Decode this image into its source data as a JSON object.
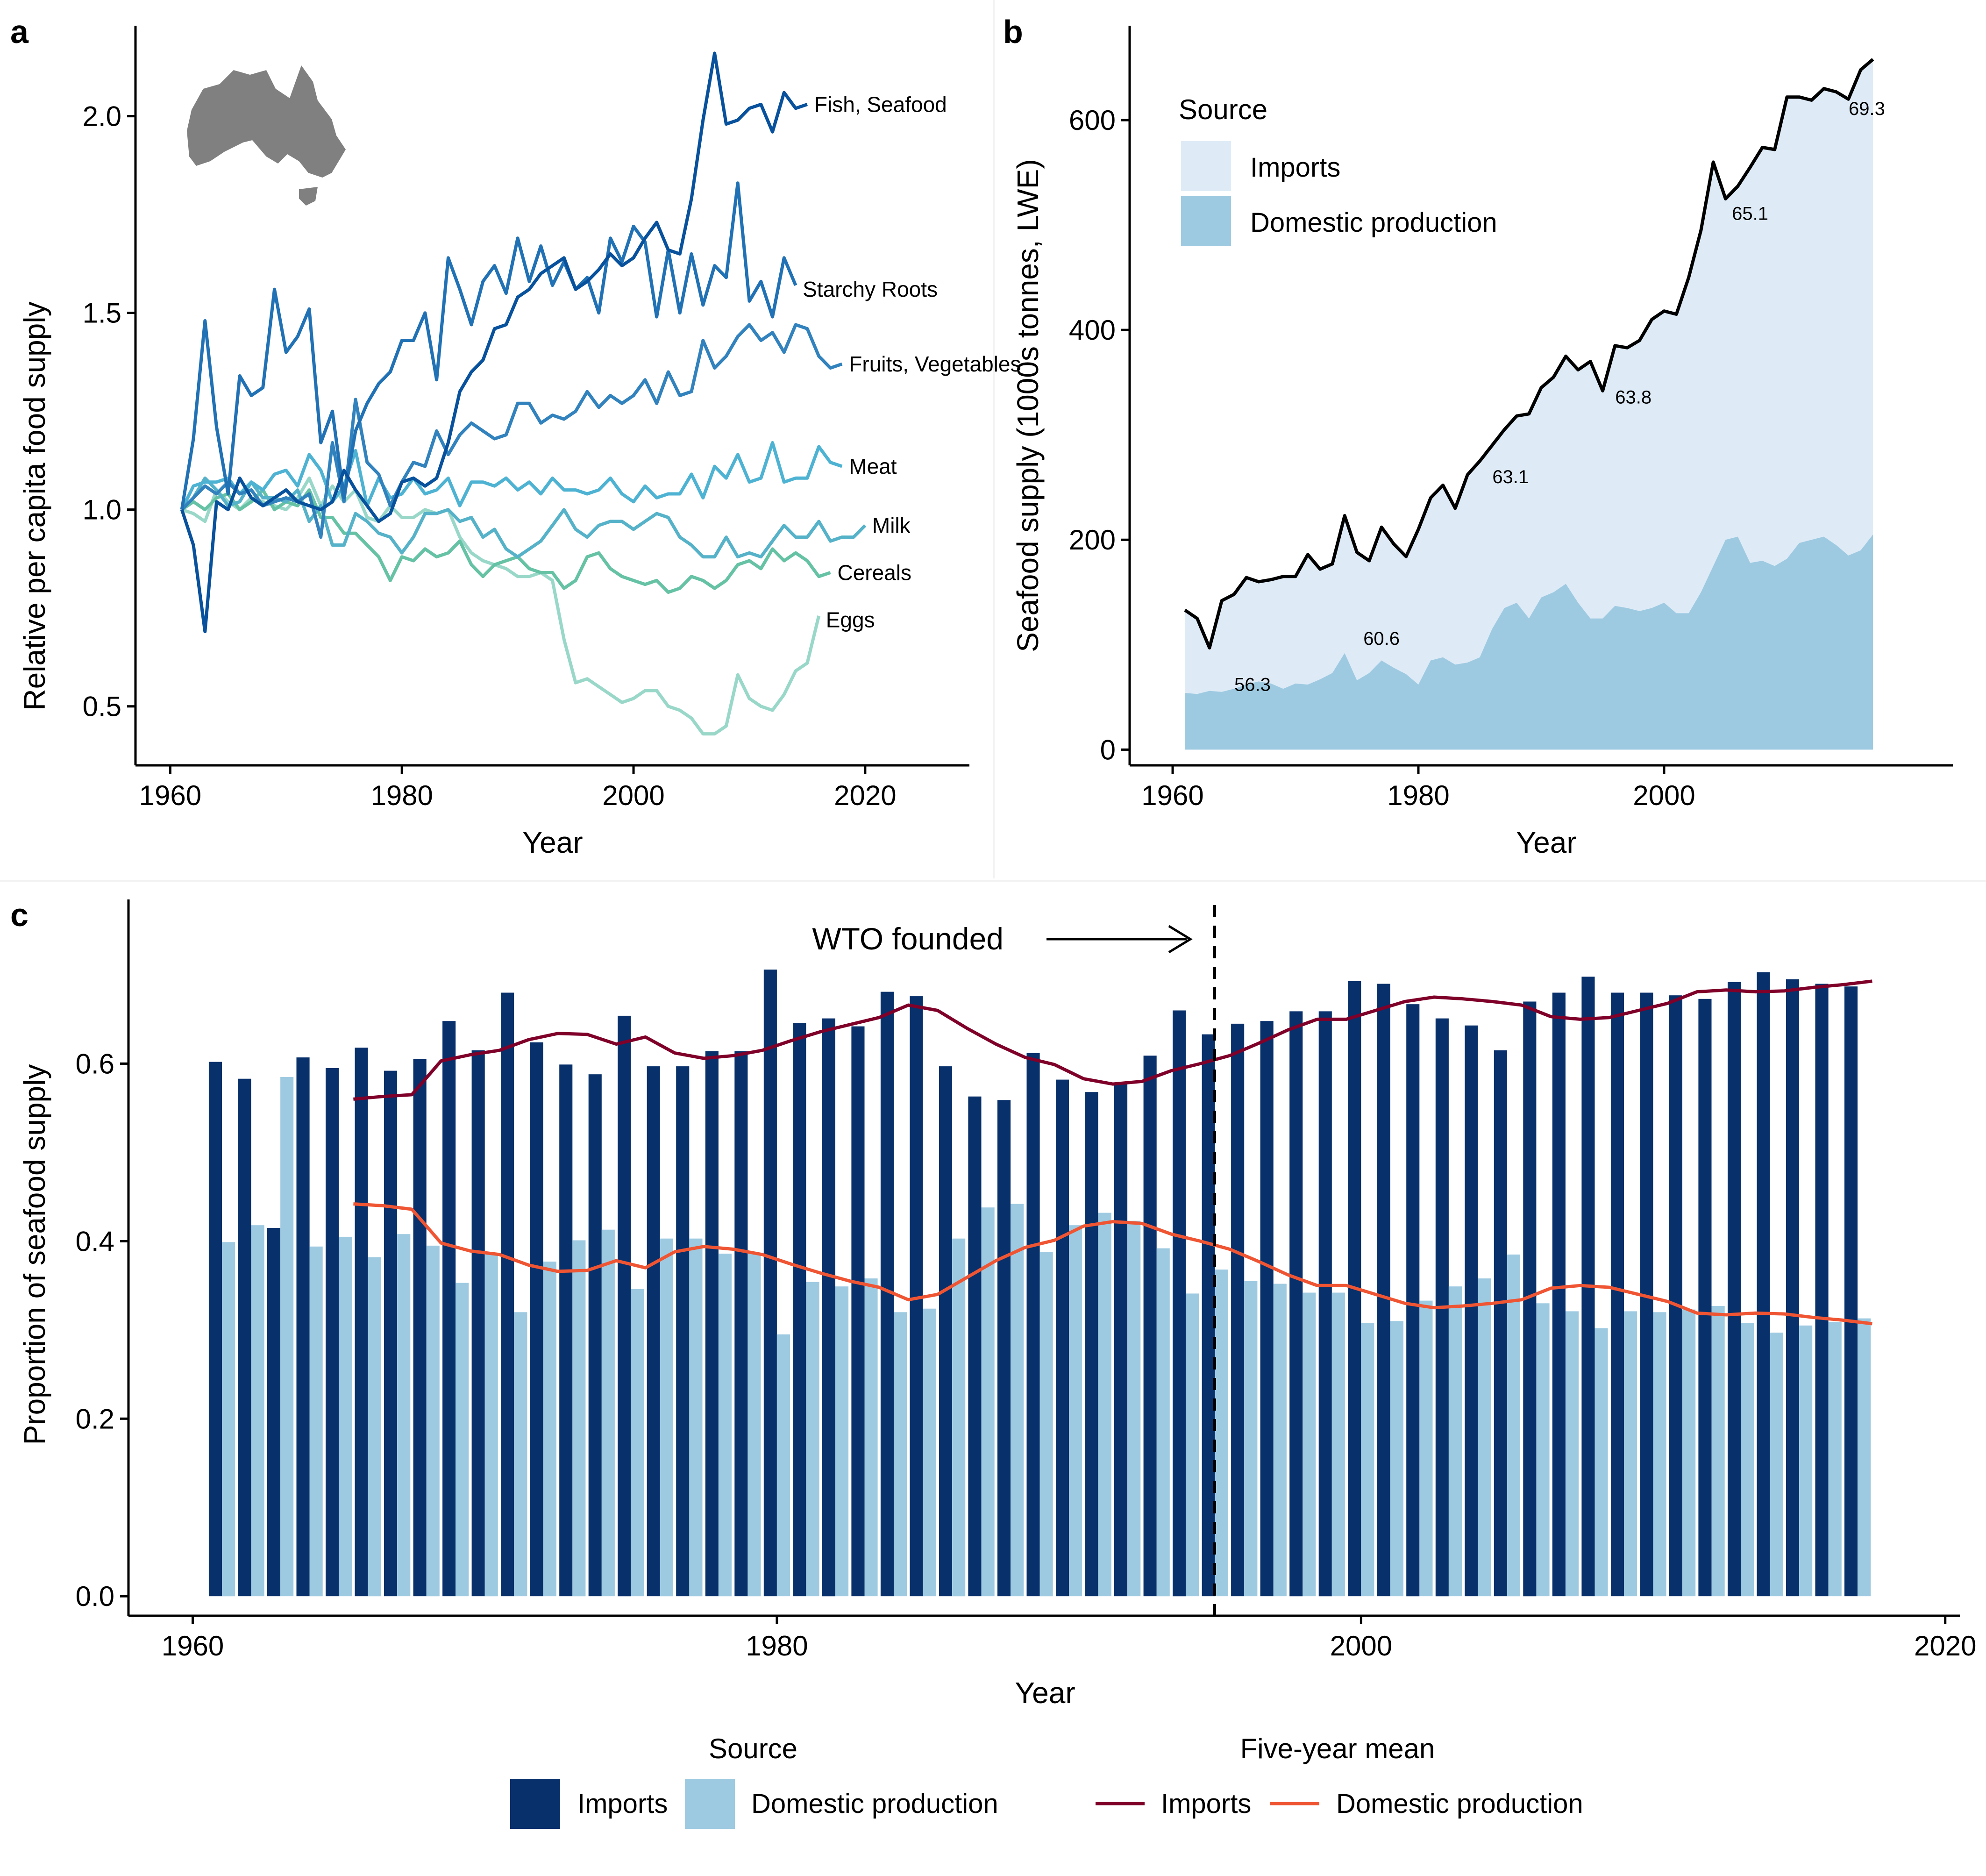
{
  "panels": {
    "a": {
      "letter": "a"
    },
    "b": {
      "letter": "b"
    },
    "c": {
      "letter": "c"
    }
  },
  "colors": {
    "fish_seafood": "#08519c",
    "starchy_roots": "#2171b5",
    "fruits_vegetables": "#3182bd",
    "meat": "#4eb3d3",
    "milk": "#55b2c8",
    "cereals": "#66c2a4",
    "eggs": "#99d8c9",
    "imports_area": "#deebf7",
    "domestic_area": "#9ecae1",
    "total_line": "#000000",
    "imports_bar": "#08306b",
    "domestic_bar": "#9ecae1",
    "imports_mean": "#7f0029",
    "domestic_mean": "#ef5533",
    "map_fill": "#808080"
  },
  "chart_data": [
    {
      "panel": "a",
      "type": "line",
      "title": "",
      "xlabel": "Year",
      "ylabel": "Relative per capita food supply",
      "xlim": [
        1957,
        2029
      ],
      "ylim": [
        0.35,
        2.23
      ],
      "xticks": [
        1960,
        1980,
        2000,
        2020
      ],
      "yticks": [
        0.5,
        1.0,
        1.5,
        2.0
      ],
      "ytick_labels": [
        "0.5",
        "1.0",
        "1.5",
        "2.0"
      ],
      "x_start": 1961,
      "inset_icon": "australia-map-icon",
      "series": [
        {
          "name": "Fish, Seafood",
          "color_key": "fish_seafood",
          "values": [
            1.0,
            0.91,
            0.69,
            1.02,
            1.0,
            1.08,
            1.03,
            1.01,
            1.03,
            1.05,
            1.02,
            1.01,
            1.0,
            1.02,
            1.1,
            1.05,
            1.01,
            0.97,
            0.99,
            1.07,
            1.08,
            1.06,
            1.08,
            1.17,
            1.3,
            1.35,
            1.38,
            1.46,
            1.47,
            1.54,
            1.56,
            1.6,
            1.62,
            1.64,
            1.56,
            1.58,
            1.61,
            1.65,
            1.62,
            1.64,
            1.69,
            1.73,
            1.66,
            1.65,
            1.79,
            1.99,
            2.16,
            1.98,
            1.99,
            2.02,
            2.03,
            1.96,
            2.06,
            2.02,
            2.03
          ]
        },
        {
          "name": "Starchy Roots",
          "color_key": "starchy_roots",
          "values": [
            1.0,
            1.18,
            1.48,
            1.21,
            1.04,
            1.34,
            1.29,
            1.31,
            1.56,
            1.4,
            1.44,
            1.51,
            1.17,
            1.25,
            1.03,
            1.2,
            1.27,
            1.32,
            1.35,
            1.43,
            1.43,
            1.5,
            1.33,
            1.64,
            1.56,
            1.47,
            1.58,
            1.62,
            1.55,
            1.69,
            1.58,
            1.67,
            1.57,
            1.63,
            1.56,
            1.59,
            1.5,
            1.69,
            1.63,
            1.72,
            1.68,
            1.49,
            1.66,
            1.5,
            1.65,
            1.52,
            1.62,
            1.59,
            1.83,
            1.53,
            1.58,
            1.49,
            1.64,
            1.57
          ]
        },
        {
          "name": "Fruits, Vegetables",
          "color_key": "fruits_vegetables",
          "values": [
            1.0,
            1.03,
            1.06,
            1.04,
            1.07,
            1.04,
            1.05,
            1.01,
            1.02,
            1.03,
            1.02,
            1.04,
            0.93,
            1.17,
            1.02,
            1.28,
            1.12,
            1.09,
            1.01,
            1.07,
            1.12,
            1.11,
            1.2,
            1.14,
            1.19,
            1.22,
            1.2,
            1.18,
            1.19,
            1.27,
            1.27,
            1.22,
            1.24,
            1.23,
            1.25,
            1.3,
            1.26,
            1.29,
            1.27,
            1.29,
            1.33,
            1.27,
            1.35,
            1.29,
            1.3,
            1.43,
            1.36,
            1.39,
            1.44,
            1.47,
            1.43,
            1.45,
            1.4,
            1.47,
            1.46,
            1.39,
            1.36,
            1.37
          ]
        },
        {
          "name": "Meat",
          "color_key": "meat",
          "values": [
            1.0,
            1.06,
            1.07,
            1.07,
            1.08,
            1.04,
            1.07,
            1.05,
            1.09,
            1.1,
            1.06,
            1.14,
            1.1,
            1.02,
            1.06,
            1.15,
            1.01,
            1.08,
            1.03,
            1.04,
            1.08,
            1.04,
            1.05,
            1.08,
            1.01,
            1.07,
            1.07,
            1.06,
            1.08,
            1.05,
            1.07,
            1.04,
            1.08,
            1.05,
            1.05,
            1.04,
            1.05,
            1.08,
            1.04,
            1.02,
            1.06,
            1.03,
            1.04,
            1.04,
            1.09,
            1.03,
            1.11,
            1.08,
            1.14,
            1.07,
            1.08,
            1.17,
            1.07,
            1.08,
            1.08,
            1.16,
            1.12,
            1.11
          ]
        },
        {
          "name": "Milk",
          "color_key": "milk",
          "values": [
            1.0,
            1.03,
            1.08,
            1.05,
            1.01,
            1.02,
            1.07,
            1.03,
            1.03,
            1.02,
            1.05,
            0.97,
            1.01,
            0.91,
            0.91,
            0.99,
            0.97,
            0.94,
            0.93,
            0.89,
            0.93,
            0.99,
            0.99,
            1.0,
            0.97,
            0.98,
            0.93,
            0.95,
            0.9,
            0.88,
            0.9,
            0.92,
            0.96,
            1.0,
            0.95,
            0.93,
            0.96,
            0.97,
            0.97,
            0.95,
            0.97,
            0.99,
            0.98,
            0.93,
            0.91,
            0.88,
            0.88,
            0.93,
            0.88,
            0.89,
            0.88,
            0.92,
            0.96,
            0.93,
            0.93,
            0.97,
            0.92,
            0.93,
            0.93,
            0.96
          ]
        },
        {
          "name": "Cereals",
          "color_key": "cereals",
          "values": [
            1.0,
            1.02,
            1.0,
            1.03,
            1.04,
            1.0,
            1.02,
            1.05,
            1.0,
            1.02,
            1.01,
            1.05,
            0.98,
            0.98,
            0.94,
            0.94,
            0.91,
            0.88,
            0.82,
            0.88,
            0.87,
            0.9,
            0.88,
            0.89,
            0.92,
            0.86,
            0.83,
            0.86,
            0.87,
            0.88,
            0.85,
            0.84,
            0.84,
            0.8,
            0.82,
            0.88,
            0.89,
            0.85,
            0.83,
            0.82,
            0.81,
            0.82,
            0.79,
            0.8,
            0.83,
            0.82,
            0.8,
            0.82,
            0.86,
            0.87,
            0.85,
            0.9,
            0.87,
            0.89,
            0.87,
            0.83,
            0.84
          ]
        },
        {
          "name": "Eggs",
          "color_key": "eggs",
          "values": [
            1.0,
            0.99,
            0.97,
            1.05,
            1.02,
            1.0,
            1.03,
            1.02,
            1.01,
            1.0,
            1.03,
            1.08,
            1.01,
            1.06,
            1.02,
            1.05,
            0.98,
            0.97,
            1.01,
            0.98,
            0.98,
            1.0,
            0.99,
            1.0,
            0.93,
            0.89,
            0.87,
            0.86,
            0.85,
            0.83,
            0.83,
            0.84,
            0.82,
            0.67,
            0.56,
            0.57,
            0.55,
            0.53,
            0.51,
            0.52,
            0.54,
            0.54,
            0.5,
            0.49,
            0.47,
            0.43,
            0.43,
            0.45,
            0.58,
            0.52,
            0.5,
            0.49,
            0.53,
            0.59,
            0.61,
            0.73
          ]
        }
      ]
    },
    {
      "panel": "b",
      "type": "area",
      "title": "",
      "xlabel": "Year",
      "ylabel": "Seafood supply (1000s tonnes, LWE)",
      "xlim": [
        1956.5,
        2023.5
      ],
      "ylim": [
        -15,
        690
      ],
      "xticks": [
        1960,
        1980,
        2000
      ],
      "yticks": [
        0,
        200,
        400,
        600
      ],
      "x": [
        1961,
        1962,
        1963,
        1964,
        1965,
        1966,
        1967,
        1968,
        1969,
        1970,
        1971,
        1972,
        1973,
        1974,
        1975,
        1976,
        1977,
        1978,
        1979,
        1980,
        1981,
        1982,
        1983,
        1984,
        1985,
        1986,
        1987,
        1988,
        1989,
        1990,
        1991,
        1992,
        1993,
        1994,
        1995,
        1996,
        1997,
        1998,
        1999,
        2000,
        2001,
        2002,
        2003,
        2004,
        2005,
        2006,
        2007,
        2008,
        2009,
        2010,
        2011,
        2012,
        2013,
        2014,
        2015,
        2016,
        2017
      ],
      "total": [
        133,
        125,
        97,
        142,
        148,
        164,
        160,
        162,
        165,
        165,
        186,
        172,
        177,
        223,
        188,
        180,
        212,
        196,
        184,
        210,
        240,
        252,
        230,
        262,
        275,
        290,
        305,
        318,
        320,
        345,
        355,
        375,
        362,
        370,
        342,
        385,
        383,
        390,
        410,
        418,
        415,
        450,
        495,
        560,
        525,
        537,
        555,
        574,
        572,
        622,
        622,
        619,
        630,
        627,
        620,
        648,
        658
      ],
      "domestic": [
        54,
        53,
        56,
        55,
        58,
        62,
        65,
        63,
        58,
        63,
        62,
        67,
        73,
        92,
        66,
        73,
        85,
        78,
        72,
        62,
        85,
        88,
        81,
        83,
        88,
        115,
        135,
        140,
        125,
        145,
        150,
        158,
        140,
        125,
        125,
        137,
        135,
        132,
        135,
        140,
        130,
        130,
        150,
        175,
        200,
        203,
        178,
        180,
        175,
        182,
        197,
        200,
        203,
        195,
        185,
        190,
        205
      ],
      "annotations": [
        {
          "x": 1966.5,
          "y": 56,
          "label": "56.3"
        },
        {
          "x": 1977,
          "y": 100,
          "label": "60.6"
        },
        {
          "x": 1987.5,
          "y": 254,
          "label": "63.1"
        },
        {
          "x": 1997.5,
          "y": 330,
          "label": "63.8"
        },
        {
          "x": 2007,
          "y": 505,
          "label": "65.1"
        },
        {
          "x": 2016.5,
          "y": 605,
          "label": "69.3"
        }
      ],
      "legend": {
        "title": "Source",
        "position": "top-left",
        "items": [
          {
            "label": "Imports",
            "color_key": "imports_area"
          },
          {
            "label": "Domestic production",
            "color_key": "domestic_area"
          }
        ]
      }
    },
    {
      "panel": "c",
      "type": "bar",
      "title": "",
      "xlabel": "Year",
      "ylabel": "Proportion of seafood supply",
      "xlim": [
        1957.8,
        2020.5
      ],
      "ylim": [
        -0.022,
        0.785
      ],
      "xticks": [
        1960,
        1980,
        2000,
        2020
      ],
      "yticks": [
        0.0,
        0.2,
        0.4,
        0.6
      ],
      "ytick_labels": [
        "0.0",
        "0.2",
        "0.4",
        "0.6"
      ],
      "x": [
        1961,
        1962,
        1963,
        1964,
        1965,
        1966,
        1967,
        1968,
        1969,
        1970,
        1971,
        1972,
        1973,
        1974,
        1975,
        1976,
        1977,
        1978,
        1979,
        1980,
        1981,
        1982,
        1983,
        1984,
        1985,
        1986,
        1987,
        1988,
        1989,
        1990,
        1991,
        1992,
        1993,
        1994,
        1995,
        1996,
        1997,
        1998,
        1999,
        2000,
        2001,
        2002,
        2003,
        2004,
        2005,
        2006,
        2007,
        2008,
        2009,
        2010,
        2011,
        2012,
        2013,
        2014,
        2015,
        2016,
        2017
      ],
      "imports": [
        0.602,
        0.583,
        0.415,
        0.607,
        0.595,
        0.618,
        0.592,
        0.605,
        0.648,
        0.615,
        0.68,
        0.624,
        0.599,
        0.588,
        0.654,
        0.597,
        0.597,
        0.614,
        0.614,
        0.706,
        0.646,
        0.651,
        0.642,
        0.681,
        0.676,
        0.597,
        0.563,
        0.559,
        0.612,
        0.582,
        0.568,
        0.577,
        0.609,
        0.66,
        0.633,
        0.645,
        0.648,
        0.659,
        0.659,
        0.693,
        0.69,
        0.667,
        0.651,
        0.643,
        0.615,
        0.67,
        0.68,
        0.698,
        0.68,
        0.68,
        0.677,
        0.673,
        0.692,
        0.703,
        0.695,
        0.69,
        0.687
      ],
      "domestic": [
        0.399,
        0.418,
        0.585,
        0.394,
        0.405,
        0.382,
        0.408,
        0.395,
        0.353,
        0.385,
        0.32,
        0.377,
        0.401,
        0.413,
        0.346,
        0.403,
        0.403,
        0.386,
        0.386,
        0.295,
        0.354,
        0.349,
        0.358,
        0.32,
        0.324,
        0.403,
        0.438,
        0.442,
        0.388,
        0.418,
        0.432,
        0.423,
        0.392,
        0.341,
        0.368,
        0.355,
        0.352,
        0.342,
        0.342,
        0.308,
        0.31,
        0.333,
        0.349,
        0.358,
        0.385,
        0.33,
        0.321,
        0.302,
        0.321,
        0.32,
        0.323,
        0.327,
        0.308,
        0.297,
        0.305,
        0.309,
        0.313
      ],
      "five_year_mean_x": [
        1965.5,
        1966.5,
        1967.5,
        1968.5,
        1969.5,
        1970.5,
        1971.5,
        1972.5,
        1973.5,
        1974.5,
        1975.5,
        1976.5,
        1977.5,
        1978.5,
        1979.5,
        1980.5,
        1981.5,
        1982.5,
        1983.5,
        1984.5,
        1985.5,
        1986.5,
        1987.5,
        1988.5,
        1989.5,
        1990.5,
        1991.5,
        1992.5,
        1993.5,
        1994.5,
        1995.5,
        1996.5,
        1997.5,
        1998.5,
        1999.5,
        2000.5,
        2001.5,
        2002.5,
        2003.5,
        2004.5,
        2005.5,
        2006.5,
        2007.5,
        2008.5,
        2009.5,
        2010.5,
        2011.5,
        2012.5,
        2013.5,
        2014.5,
        2015.5,
        2016.5,
        2017.5
      ],
      "five_year_mean_imports": [
        0.56,
        0.563,
        0.565,
        0.603,
        0.61,
        0.615,
        0.627,
        0.634,
        0.633,
        0.622,
        0.63,
        0.612,
        0.606,
        0.609,
        0.615,
        0.626,
        0.636,
        0.644,
        0.652,
        0.666,
        0.66,
        0.64,
        0.622,
        0.607,
        0.599,
        0.583,
        0.577,
        0.58,
        0.592,
        0.6,
        0.609,
        0.623,
        0.638,
        0.65,
        0.65,
        0.66,
        0.67,
        0.675,
        0.673,
        0.67,
        0.666,
        0.653,
        0.65,
        0.652,
        0.66,
        0.668,
        0.681,
        0.683,
        0.681,
        0.682,
        0.686,
        0.689,
        0.693
      ],
      "five_year_mean_domestic": [
        0.442,
        0.44,
        0.436,
        0.398,
        0.389,
        0.385,
        0.373,
        0.366,
        0.367,
        0.378,
        0.37,
        0.388,
        0.394,
        0.391,
        0.385,
        0.374,
        0.364,
        0.355,
        0.348,
        0.334,
        0.34,
        0.359,
        0.378,
        0.393,
        0.401,
        0.417,
        0.422,
        0.42,
        0.408,
        0.4,
        0.391,
        0.377,
        0.362,
        0.35,
        0.35,
        0.34,
        0.33,
        0.325,
        0.327,
        0.33,
        0.334,
        0.347,
        0.35,
        0.348,
        0.34,
        0.332,
        0.319,
        0.317,
        0.319,
        0.318,
        0.314,
        0.311,
        0.307
      ],
      "wto_year": 1995,
      "wto_label": "WTO founded",
      "legends": [
        {
          "title": "Source",
          "items": [
            {
              "label": "Imports",
              "color_key": "imports_bar"
            },
            {
              "label": "Domestic production",
              "color_key": "domestic_bar"
            }
          ]
        },
        {
          "title": "Five-year mean",
          "items": [
            {
              "label": "Imports",
              "color_key": "imports_mean"
            },
            {
              "label": "Domestic production",
              "color_key": "domestic_mean"
            }
          ]
        }
      ]
    }
  ]
}
